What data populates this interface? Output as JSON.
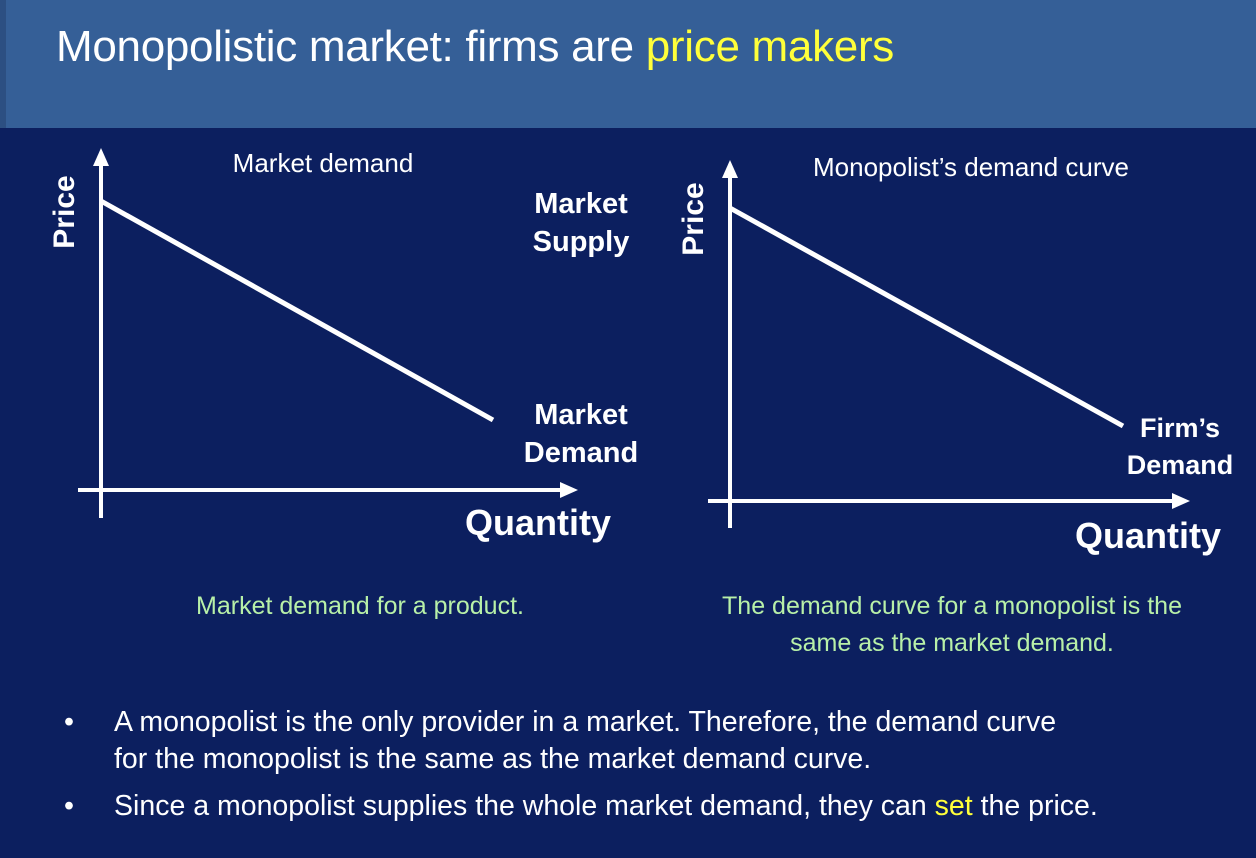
{
  "slide": {
    "title_prefix": "Monopolistic market: firms are ",
    "title_highlight": "price makers",
    "left_graph": {
      "heading": "Market demand",
      "y_axis_label": "Price",
      "x_axis_label": "Quantity",
      "supply_label_line1": "Market",
      "supply_label_line2": "Supply",
      "demand_label_line1": "Market",
      "demand_label_line2": "Demand",
      "caption": "Market demand for a product."
    },
    "right_graph": {
      "heading": "Monopolist’s demand curve",
      "y_axis_label": "Price",
      "x_axis_label": "Quantity",
      "demand_label_line1": "Firm’s",
      "demand_label_line2": "Demand",
      "caption_line1": "The demand curve for a monopolist is the",
      "caption_line2": "same as the market demand."
    },
    "bullets": [
      {
        "marker": "•",
        "line1": "A monopolist is the only provider in a market. Therefore, the demand curve",
        "line2": "for the monopolist is the same as the market demand curve."
      },
      {
        "marker": "•",
        "text_before": "Since a monopolist supplies the whole market demand, they can ",
        "highlight": "set",
        "text_after": " the price."
      }
    ],
    "colors": {
      "background": "#0c1f5f",
      "title_bar": "#355f97",
      "title_highlight": "#ffff3a",
      "caption_text": "#b8f0a8",
      "axis_line": "#ffffff"
    }
  }
}
